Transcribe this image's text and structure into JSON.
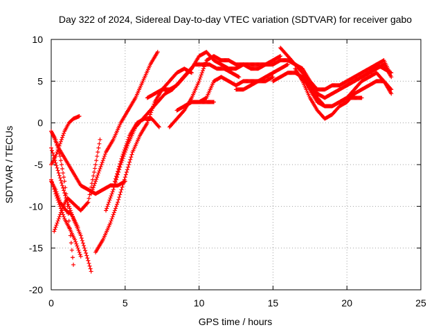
{
  "chart_data": {
    "type": "scatter",
    "title": "Day 322 of 2024, Sidereal Day-to-day VTEC variation (SDTVAR) for receiver gabo",
    "xlabel": "GPS time / hours",
    "ylabel": "SDTVAR / TECUs",
    "xlim": [
      0,
      25
    ],
    "ylim": [
      -20,
      10
    ],
    "xticks": [
      0,
      5,
      10,
      15,
      20,
      25
    ],
    "yticks": [
      -20,
      -15,
      -10,
      -5,
      0,
      5,
      10
    ],
    "grid": true,
    "marker": "plus",
    "color": "#ff0000",
    "series": [
      {
        "x": [
          0.0,
          0.3,
          0.6,
          0.9,
          1.1,
          1.3,
          1.5
        ],
        "y": [
          -1.0,
          -2.0,
          -4.0,
          -7.0,
          -10.0,
          -13.5,
          -17.0
        ]
      },
      {
        "x": [
          0.0,
          0.5,
          1.0,
          1.5,
          2.0,
          2.5,
          2.7
        ],
        "y": [
          -3.0,
          -6.0,
          -9.0,
          -11.5,
          -13.5,
          -16.5,
          -17.8
        ]
      },
      {
        "x": [
          0.0,
          0.3,
          0.6,
          1.0,
          1.4,
          1.8
        ],
        "y": [
          -7.0,
          -8.0,
          -9.5,
          -10.5,
          -11.0,
          -12.5
        ]
      },
      {
        "x": [
          0.0,
          0.3,
          0.6,
          0.9,
          1.2,
          1.6,
          2.0
        ],
        "y": [
          -6.8,
          -8.5,
          -10.0,
          -11.5,
          -12.5,
          -14.0,
          -16.0
        ]
      },
      {
        "x": [
          0.2,
          0.5,
          0.8,
          1.1,
          1.4,
          1.7,
          2.0,
          2.5,
          3.0,
          3.3
        ],
        "y": [
          -13.0,
          -11.5,
          -10.0,
          -9.0,
          -9.5,
          -10.0,
          -10.5,
          -9.5,
          -5.0,
          -2.0
        ]
      },
      {
        "x": [
          0.0,
          0.5,
          1.0,
          1.5,
          2.0,
          2.5,
          3.0,
          3.5,
          4.0,
          4.5,
          5.0
        ],
        "y": [
          -1.0,
          -3.0,
          -4.5,
          -6.0,
          -7.5,
          -8.0,
          -8.5,
          -8.0,
          -7.5,
          -7.5,
          -7.0
        ]
      },
      {
        "x": [
          0.0,
          0.3,
          0.6,
          0.9,
          1.2,
          1.5,
          1.9
        ],
        "y": [
          -5.0,
          -4.0,
          -2.5,
          -1.0,
          0.0,
          0.5,
          0.8
        ]
      },
      {
        "x": [
          2.7,
          3.2,
          3.7,
          4.2,
          4.7,
          5.2,
          5.7,
          6.2,
          6.7,
          7.2
        ],
        "y": [
          -8.5,
          -6.0,
          -3.5,
          -2.0,
          0.0,
          1.5,
          3.0,
          5.0,
          7.0,
          8.5
        ]
      },
      {
        "x": [
          3.0,
          3.5,
          4.0,
          4.5,
          5.0,
          5.5,
          6.0,
          6.5,
          7.0,
          7.5,
          8.0,
          8.5,
          9.0,
          9.5
        ],
        "y": [
          -15.5,
          -14.0,
          -12.0,
          -9.5,
          -6.5,
          -3.5,
          -1.5,
          0.0,
          2.5,
          4.0,
          5.0,
          6.0,
          6.5,
          6.0
        ]
      },
      {
        "x": [
          3.7,
          4.2,
          4.7,
          5.2,
          5.7,
          6.2,
          6.7,
          7.2,
          7.7,
          8.2,
          8.7,
          9.2,
          9.7,
          10.2,
          10.7,
          11.2,
          11.7,
          12.2,
          12.7
        ],
        "y": [
          -10.5,
          -8.0,
          -5.0,
          -2.5,
          -0.5,
          0.5,
          1.5,
          2.5,
          3.5,
          4.0,
          5.0,
          6.0,
          7.0,
          7.0,
          7.0,
          6.5,
          6.5,
          6.0,
          5.5
        ]
      },
      {
        "x": [
          4.3,
          4.8,
          5.3,
          5.8,
          6.3,
          6.8,
          7.3
        ],
        "y": [
          -7.0,
          -4.0,
          -1.5,
          0.0,
          0.5,
          0.5,
          -0.5
        ]
      },
      {
        "x": [
          6.5,
          7.0,
          7.5,
          8.0,
          8.5,
          9.0,
          9.5,
          10.0,
          10.5,
          11.0,
          11.5,
          12.0,
          12.5,
          13.0,
          13.5,
          14.0,
          14.5,
          15.0
        ],
        "y": [
          3.0,
          3.5,
          4.0,
          4.0,
          4.5,
          5.5,
          6.5,
          8.0,
          8.5,
          7.5,
          7.0,
          6.5,
          6.5,
          7.0,
          6.5,
          6.5,
          7.0,
          7.0
        ]
      },
      {
        "x": [
          8.0,
          8.5,
          9.0,
          9.5,
          10.0,
          10.5,
          11.0,
          11.5,
          12.0,
          12.5,
          13.0,
          13.5,
          14.0,
          14.5,
          15.0,
          15.5
        ],
        "y": [
          -0.5,
          0.5,
          1.5,
          3.0,
          5.0,
          7.5,
          8.0,
          7.5,
          7.5,
          7.0,
          7.0,
          7.0,
          7.0,
          7.0,
          7.5,
          8.0
        ]
      },
      {
        "x": [
          8.5,
          9.0,
          9.5,
          10.0,
          10.5,
          11.0,
          11.5,
          12.0,
          12.5,
          13.0,
          13.5,
          14.0,
          14.5,
          15.0,
          15.5,
          16.0
        ],
        "y": [
          1.5,
          2.0,
          2.5,
          2.5,
          3.0,
          5.0,
          5.5,
          5.0,
          4.5,
          5.0,
          5.0,
          5.0,
          5.5,
          6.0,
          6.5,
          7.0
        ]
      },
      {
        "x": [
          9.0,
          9.5,
          10.0,
          10.5,
          11.0
        ],
        "y": [
          2.0,
          2.5,
          2.5,
          2.5,
          2.5
        ]
      },
      {
        "x": [
          12.5,
          13.0,
          13.5,
          14.0,
          14.5,
          15.0
        ],
        "y": [
          4.0,
          4.0,
          4.5,
          5.0,
          5.0,
          5.5
        ]
      },
      {
        "x": [
          15.0,
          15.5,
          16.0,
          16.5,
          17.0,
          17.5,
          18.0,
          18.5,
          19.0,
          19.5,
          20.0,
          20.5,
          21.0,
          21.5,
          22.0,
          22.5,
          23.0
        ],
        "y": [
          7.0,
          7.5,
          7.5,
          7.0,
          6.0,
          5.0,
          4.0,
          4.0,
          4.5,
          4.5,
          5.0,
          5.5,
          6.0,
          6.5,
          7.0,
          6.5,
          6.0
        ]
      },
      {
        "x": [
          15.5,
          16.0,
          16.5,
          17.0,
          17.5,
          18.0,
          18.5,
          19.0,
          19.5,
          20.0,
          20.5,
          21.0,
          21.5,
          22.0,
          22.5,
          23.0
        ],
        "y": [
          9.0,
          8.0,
          7.0,
          6.5,
          5.0,
          3.5,
          3.0,
          3.5,
          4.0,
          4.5,
          5.0,
          5.5,
          6.0,
          6.5,
          7.0,
          5.5
        ]
      },
      {
        "x": [
          15.0,
          15.5,
          16.0,
          16.5,
          17.0,
          17.5,
          18.0,
          18.5,
          19.0,
          19.5,
          20.0,
          20.5,
          21.0,
          21.5,
          22.0,
          22.5,
          23.0
        ],
        "y": [
          5.0,
          5.5,
          6.0,
          6.0,
          5.5,
          4.5,
          3.0,
          2.0,
          2.0,
          2.5,
          3.0,
          4.0,
          5.0,
          5.5,
          6.0,
          5.0,
          4.0
        ]
      },
      {
        "x": [
          16.5,
          17.0,
          17.5,
          18.0,
          18.5,
          19.0,
          19.5,
          20.0,
          20.5,
          21.0,
          21.5,
          22.0,
          22.5,
          23.0
        ],
        "y": [
          6.5,
          5.0,
          3.0,
          1.5,
          0.5,
          1.0,
          2.0,
          2.5,
          3.5,
          4.0,
          4.5,
          5.0,
          5.0,
          3.5
        ]
      },
      {
        "x": [
          17.0,
          17.5,
          18.0,
          18.5,
          19.0,
          19.5,
          20.0,
          20.5,
          21.0
        ],
        "y": [
          5.5,
          4.0,
          2.5,
          2.0,
          2.0,
          2.5,
          3.0,
          3.0,
          3.0
        ]
      },
      {
        "x": [
          20.0,
          20.5,
          21.0,
          21.5,
          22.0,
          22.5,
          22.9
        ],
        "y": [
          4.5,
          5.0,
          5.5,
          6.0,
          7.0,
          7.5,
          6.0
        ]
      }
    ]
  }
}
